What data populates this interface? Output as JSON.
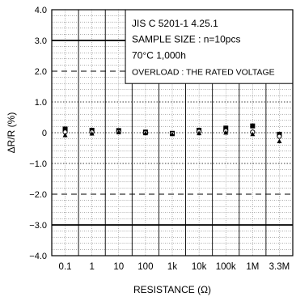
{
  "chart_data": {
    "type": "scatter",
    "title": "",
    "xlabel": "RESISTANCE (Ω)",
    "ylabel": "ΔR/R (%)",
    "ylim": [
      -4.0,
      4.0
    ],
    "y_ticks": [
      "4.0",
      "3.0",
      "2.0",
      "1.0",
      "0",
      "−1.0",
      "−2.0",
      "−3.0",
      "−4.0"
    ],
    "categories": [
      "0.1",
      "1",
      "10",
      "100",
      "1k",
      "10k",
      "100k",
      "1M",
      "3.3M"
    ],
    "grid": true,
    "series": [
      {
        "marker": "square",
        "values": [
          0.12,
          0.08,
          0.07,
          0.02,
          -0.02,
          0.08,
          0.15,
          0.22,
          -0.05
        ]
      },
      {
        "marker": "circle",
        "values": [
          0.02,
          0.02,
          0.03,
          0.0,
          -0.03,
          0.04,
          0.06,
          0.02,
          -0.12
        ]
      },
      {
        "marker": "triangle",
        "values": [
          -0.08,
          -0.03,
          0.01,
          -0.02,
          -0.05,
          -0.02,
          0.0,
          -0.05,
          -0.28
        ]
      }
    ],
    "limit_lines": [
      {
        "value": 3.0,
        "style": "solid"
      },
      {
        "value": 2.0,
        "style": "dashed"
      },
      {
        "value": -2.0,
        "style": "dashed"
      },
      {
        "value": -3.0,
        "style": "solid"
      }
    ],
    "annotation": {
      "lines": [
        "JIS C 5201-1 4.25.1",
        "SAMPLE SIZE : n=10pcs",
        "70°C 1,000h",
        "OVERLOAD : THE RATED VOLTAGE"
      ]
    }
  }
}
